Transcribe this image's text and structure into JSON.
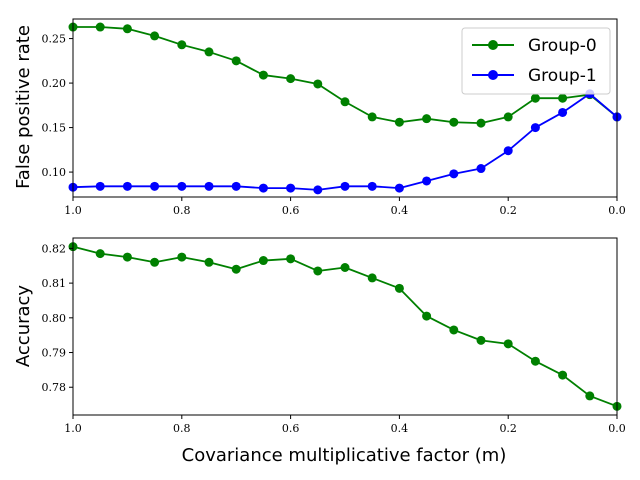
{
  "chart_data": [
    {
      "type": "line",
      "title": "",
      "xlabel": "",
      "ylabel": "False positive rate",
      "xlim": [
        1.0,
        0.0
      ],
      "ylim": [
        0.072,
        0.272
      ],
      "x": [
        1.0,
        0.95,
        0.9,
        0.85,
        0.8,
        0.75,
        0.7,
        0.65,
        0.6,
        0.55,
        0.5,
        0.45,
        0.4,
        0.35,
        0.3,
        0.25,
        0.2,
        0.15,
        0.1,
        0.05,
        0.0
      ],
      "xticks": [
        1.0,
        0.8,
        0.6,
        0.4,
        0.2,
        0.0
      ],
      "xtick_labels": [
        "1.0",
        "0.8",
        "0.6",
        "0.4",
        "0.2",
        "0.0"
      ],
      "yticks": [
        0.1,
        0.15,
        0.2,
        0.25
      ],
      "ytick_labels": [
        "0.10",
        "0.15",
        "0.20",
        "0.25"
      ],
      "legend": "top-right",
      "series": [
        {
          "name": "Group-0",
          "color": "#008000",
          "values": [
            0.263,
            0.263,
            0.261,
            0.253,
            0.243,
            0.235,
            0.225,
            0.209,
            0.205,
            0.199,
            0.179,
            0.162,
            0.156,
            0.16,
            0.156,
            0.155,
            0.162,
            0.183,
            0.183,
            0.187,
            0.162
          ]
        },
        {
          "name": "Group-1",
          "color": "#0000ff",
          "values": [
            0.083,
            0.084,
            0.084,
            0.084,
            0.084,
            0.084,
            0.084,
            0.082,
            0.082,
            0.08,
            0.084,
            0.084,
            0.082,
            0.09,
            0.098,
            0.104,
            0.124,
            0.15,
            0.167,
            0.188,
            0.162
          ]
        }
      ]
    },
    {
      "type": "line",
      "title": "",
      "xlabel": "Covariance multiplicative factor (m)",
      "ylabel": "Accuracy",
      "xlim": [
        1.0,
        0.0
      ],
      "ylim": [
        0.772,
        0.823
      ],
      "x": [
        1.0,
        0.95,
        0.9,
        0.85,
        0.8,
        0.75,
        0.7,
        0.65,
        0.6,
        0.55,
        0.5,
        0.45,
        0.4,
        0.35,
        0.3,
        0.25,
        0.2,
        0.15,
        0.1,
        0.05,
        0.0
      ],
      "xticks": [
        1.0,
        0.8,
        0.6,
        0.4,
        0.2,
        0.0
      ],
      "xtick_labels": [
        "1.0",
        "0.8",
        "0.6",
        "0.4",
        "0.2",
        "0.0"
      ],
      "yticks": [
        0.78,
        0.79,
        0.8,
        0.81,
        0.82
      ],
      "ytick_labels": [
        "0.78",
        "0.79",
        "0.80",
        "0.81",
        "0.82"
      ],
      "series": [
        {
          "name": "Accuracy",
          "color": "#008000",
          "values": [
            0.8205,
            0.8185,
            0.8175,
            0.816,
            0.8175,
            0.816,
            0.814,
            0.8165,
            0.817,
            0.8135,
            0.8145,
            0.8115,
            0.8085,
            0.8005,
            0.7965,
            0.7935,
            0.7925,
            0.7875,
            0.7835,
            0.7775,
            0.7745
          ]
        }
      ]
    }
  ]
}
